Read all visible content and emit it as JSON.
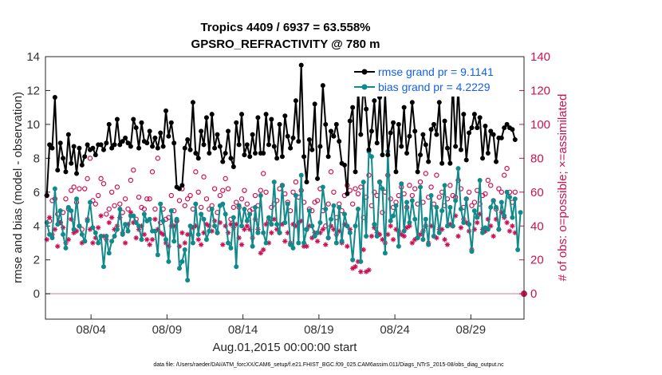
{
  "chart_data": {
    "type": "line",
    "title": "Tropics 4409 / 6937 = 63.558%",
    "subtitle": "GPSRO_REFRACTIVITY @ 780 m",
    "ylabel": "rmse and bias (model - observation)",
    "ylabel_right": "# of obs: o=possible; ×=assimilated",
    "xlabel": "Aug.01,2015 00:00:00 start",
    "footnote": "data file: /Users/raeder/DAI/ATM_forcXX/CAM6_setup/f.e21.FHIST_BGC.f09_025.CAM6assim.011/Diags_NTrS_2015-08/obs_diag_output.nc",
    "x_range": [
      0,
      31.5
    ],
    "ylim": [
      -1.5,
      14
    ],
    "ylim_right": [
      -15,
      140
    ],
    "y_ticks": [
      "0",
      "2",
      "4",
      "6",
      "8",
      "10",
      "12",
      "14"
    ],
    "y_ticks_right": [
      "0",
      "20",
      "40",
      "60",
      "80",
      "100",
      "120",
      "140"
    ],
    "x_ticks": [
      {
        "day": 3,
        "label": "08/04"
      },
      {
        "day": 8,
        "label": "08/09"
      },
      {
        "day": 13,
        "label": "08/14"
      },
      {
        "day": 18,
        "label": "08/19"
      },
      {
        "day": 23,
        "label": "08/24"
      },
      {
        "day": 28,
        "label": "08/29"
      }
    ],
    "series": [
      {
        "name": "rmse grand pr = 9.1141",
        "axis": "left",
        "color": "#000000",
        "values": [
          5.8,
          8.8,
          8.6,
          11.6,
          7.3,
          8.9,
          8.0,
          7.2,
          9.4,
          7.7,
          8.7,
          7.1,
          8.6,
          7.6,
          8.1,
          8.8,
          8.5,
          8.6,
          8.2,
          8.8,
          8.8,
          8.5,
          8.9,
          10.0,
          8.6,
          8.8,
          10.3,
          8.8,
          9.0,
          9.2,
          8.9,
          8.7,
          10.3,
          9.8,
          8.6,
          10.1,
          9.0,
          8.9,
          9.6,
          8.7,
          9.2,
          8.6,
          9.5,
          8.7,
          10.8,
          9.3,
          10.1,
          8.9,
          6.3,
          6.2,
          6.4,
          8.6,
          9.1,
          8.5,
          11.3,
          8.3,
          8.0,
          9.6,
          8.8,
          10.4,
          8.3,
          10.6,
          8.6,
          9.4,
          8.7,
          7.8,
          8.3,
          9.6,
          8.0,
          7.5,
          10.1,
          8.8,
          10.6,
          8.2,
          8.8,
          8.1,
          9.4,
          8.3,
          10.4,
          8.3,
          8.3,
          10.6,
          8.8,
          10.3,
          8.7,
          8.0,
          10.0,
          8.1,
          10.5,
          9.3,
          8.6,
          9.2,
          11.4,
          9.0,
          13.5,
          8.1,
          6.6,
          9.1,
          8.5,
          11.2,
          6.8,
          8.7,
          12.3,
          10.0,
          8.1,
          9.6,
          9.3,
          10.0,
          9.0,
          7.7,
          7.6,
          5.9,
          10.2,
          11.0,
          7.2,
          12.2,
          9.4,
          12.4,
          10.9,
          8.5,
          9.6,
          11.4,
          8.9,
          11.6,
          8.2,
          11.9,
          8.2,
          9.5,
          10.1,
          7.2,
          10.0,
          8.7,
          11.0,
          8.3,
          9.3,
          11.3,
          9.6,
          7.2,
          8.2,
          9.4,
          8.8,
          7.8,
          9.7,
          10.0,
          9.4,
          11.3,
          7.7,
          10.2,
          8.6,
          7.7,
          12.6,
          8.7,
          12.3,
          8.5,
          10.6,
          7.9,
          9.5,
          9.8,
          10.6,
          9.8,
          10.4,
          8.0,
          9.9,
          8.3,
          9.6,
          9.4,
          7.8,
          9.2,
          9.2,
          9.8,
          10.0,
          9.8,
          9.7,
          9.1
        ]
      },
      {
        "name": "bias grand pr = 4.2229",
        "axis": "left",
        "color": "#108a8a",
        "values": [
          4.2,
          3.5,
          3.3,
          6.2,
          4.1,
          4.9,
          3.5,
          2.7,
          5.1,
          4.9,
          3.8,
          5.6,
          4.0,
          3.5,
          3.1,
          4.3,
          5.4,
          3.9,
          3.6,
          3.0,
          3.4,
          1.6,
          3.4,
          2.4,
          3.1,
          3.4,
          3.8,
          5.0,
          3.5,
          4.1,
          3.7,
          4.6,
          4.6,
          4.2,
          4.0,
          3.2,
          4.7,
          4.3,
          4.4,
          3.7,
          3.7,
          2.3,
          5.3,
          4.3,
          3.2,
          1.9,
          4.9,
          3.1,
          4.4,
          1.5,
          1.9,
          2.6,
          0.8,
          4.0,
          3.0,
          5.3,
          3.5,
          4.7,
          4.4,
          3.2,
          3.7,
          5.0,
          4.0,
          3.6,
          5.2,
          5.3,
          4.7,
          3.0,
          2.7,
          4.5,
          1.6,
          5.2,
          4.0,
          5.0,
          4.3,
          4.7,
          2.8,
          5.1,
          3.6,
          5.8,
          3.6,
          3.0,
          4.5,
          4.1,
          6.6,
          4.1,
          3.6,
          6.4,
          4.2,
          5.3,
          2.9,
          2.7,
          5.8,
          3.0,
          7.0,
          3.0,
          3.8,
          4.9,
          4.0,
          3.4,
          3.6,
          4.2,
          6.3,
          5.0,
          3.3,
          4.4,
          5.2,
          3.0,
          5.1,
          3.1,
          4.7,
          4.0,
          3.6,
          2.0,
          4.0,
          5.0,
          1.9,
          6.6,
          3.4,
          8.4,
          8.1,
          4.1,
          3.4,
          6.6,
          6.2,
          2.4,
          8.4,
          4.3,
          4.6,
          5.2,
          2.8,
          6.5,
          3.7,
          5.4,
          4.2,
          5.5,
          4.4,
          3.3,
          6.3,
          3.2,
          4.4,
          2.9,
          5.8,
          3.4,
          5.1,
          3.6,
          4.9,
          6.4,
          4.0,
          5.1,
          4.0,
          5.5,
          7.4,
          5.0,
          4.2,
          5.6,
          4.1,
          2.5,
          4.9,
          4.5,
          6.7,
          3.6,
          3.9,
          3.8,
          5.1,
          5.5,
          5.1,
          3.8,
          5.4,
          4.6,
          6.0,
          5.7,
          4.5,
          5.6,
          2.6,
          4.8
        ]
      },
      {
        "name": "possible",
        "axis": "right",
        "color": "#cc1155",
        "values": [
          58,
          43,
          55,
          56,
          47,
          42,
          48,
          56,
          50,
          61,
          63,
          54,
          62,
          38,
          62,
          68,
          80,
          55,
          53,
          58,
          68,
          65,
          47,
          50,
          60,
          52,
          63,
          53,
          48,
          56,
          50,
          67,
          73,
          44,
          57,
          51,
          50,
          56,
          56,
          72,
          50,
          80,
          42,
          50,
          44,
          45,
          58,
          49,
          43,
          55,
          62,
          52,
          56,
          58,
          50,
          72,
          60,
          51,
          69,
          56,
          50,
          52,
          62,
          48,
          58,
          61,
          68,
          62,
          44,
          51,
          54,
          51,
          56,
          61,
          53,
          49,
          50,
          58,
          52,
          61,
          71,
          60,
          43,
          51,
          53,
          55,
          62,
          64,
          59,
          54,
          49,
          60,
          66,
          57,
          61,
          54,
          38,
          50,
          49,
          54,
          55,
          62,
          49,
          40,
          53,
          72,
          60,
          45,
          53,
          49,
          58,
          64,
          61,
          53,
          62,
          59,
          63,
          45,
          57,
          70,
          52,
          60,
          58,
          66,
          48,
          60,
          70,
          56,
          51,
          54,
          58,
          63,
          59,
          51,
          64,
          58,
          62,
          53,
          66,
          54,
          71,
          57,
          63,
          53,
          70,
          57,
          60,
          52,
          56,
          64,
          58,
          57,
          67,
          62,
          51,
          56,
          60,
          52,
          54,
          61,
          53,
          58,
          59,
          67,
          64,
          55,
          50,
          62,
          60,
          70,
          74,
          60,
          54,
          60
        ]
      },
      {
        "name": "assimilated",
        "axis": "right",
        "color": "#cc1155",
        "values": [
          32,
          45,
          35,
          38,
          28,
          42,
          39,
          30,
          32,
          44,
          36,
          37,
          40,
          30,
          31,
          44,
          38,
          30,
          33,
          39,
          46,
          34,
          32,
          42,
          45,
          38,
          40,
          45,
          36,
          30,
          41,
          48,
          42,
          33,
          38,
          40,
          35,
          32,
          29,
          32,
          44,
          38,
          36,
          35,
          30,
          28,
          40,
          40,
          43,
          28,
          36,
          30,
          35,
          35,
          39,
          40,
          32,
          29,
          36,
          41,
          40,
          37,
          43,
          36,
          42,
          29,
          40,
          36,
          41,
          39,
          41,
          33,
          29,
          38,
          40,
          38,
          33,
          44,
          38,
          24,
          26,
          41,
          30,
          36,
          44,
          38,
          36,
          41,
          31,
          36,
          30,
          41,
          40,
          42,
          43,
          28,
          28,
          40,
          33,
          36,
          31,
          36,
          38,
          29,
          33,
          40,
          38,
          35,
          37,
          30,
          41,
          28,
          38,
          15,
          16,
          19,
          13,
          26,
          13,
          14,
          34,
          39,
          36,
          35,
          32,
          30,
          35,
          40,
          32,
          38,
          37,
          35,
          34,
          39,
          40,
          30,
          32,
          33,
          35,
          37,
          40,
          30,
          40,
          34,
          33,
          38,
          38,
          32,
          29,
          41,
          40,
          46,
          34,
          39,
          44,
          42,
          37,
          26,
          38,
          42,
          47,
          38,
          37,
          44,
          40,
          34,
          44,
          38,
          48,
          45,
          42,
          37,
          40,
          36
        ]
      }
    ],
    "right_end_value": 0
  }
}
